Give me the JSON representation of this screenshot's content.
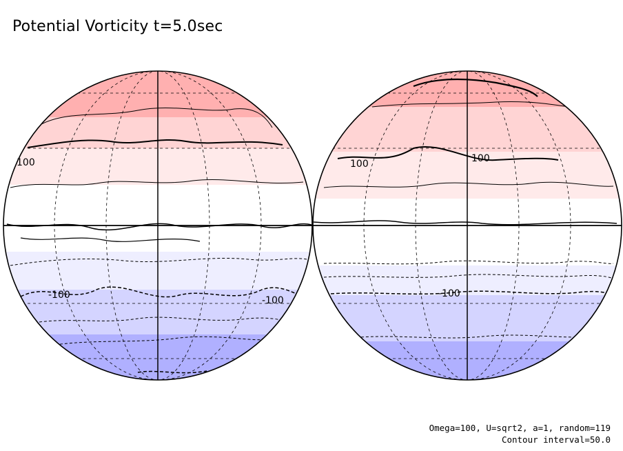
{
  "title": "Potential Vorticity t=5.0sec",
  "footer": {
    "params": "Omega=100, U=sqrt2, a=1, random=119",
    "contour_interval": "Contour interval=50.0"
  },
  "colors": {
    "positive_strong": "#ffb0b0",
    "positive_mid": "#ffd4d4",
    "positive_weak": "#ffeaea",
    "zero": "#ffffff",
    "negative_weak": "#eeeeff",
    "negative_mid": "#d4d4ff",
    "negative_strong": "#b0b0ff"
  },
  "contour_labels": {
    "left_upper": "100",
    "left_lower_1": "-100",
    "left_lower_2": "-100",
    "right_upper_1": "100",
    "right_upper_2": "100",
    "right_lower": "-100"
  }
}
